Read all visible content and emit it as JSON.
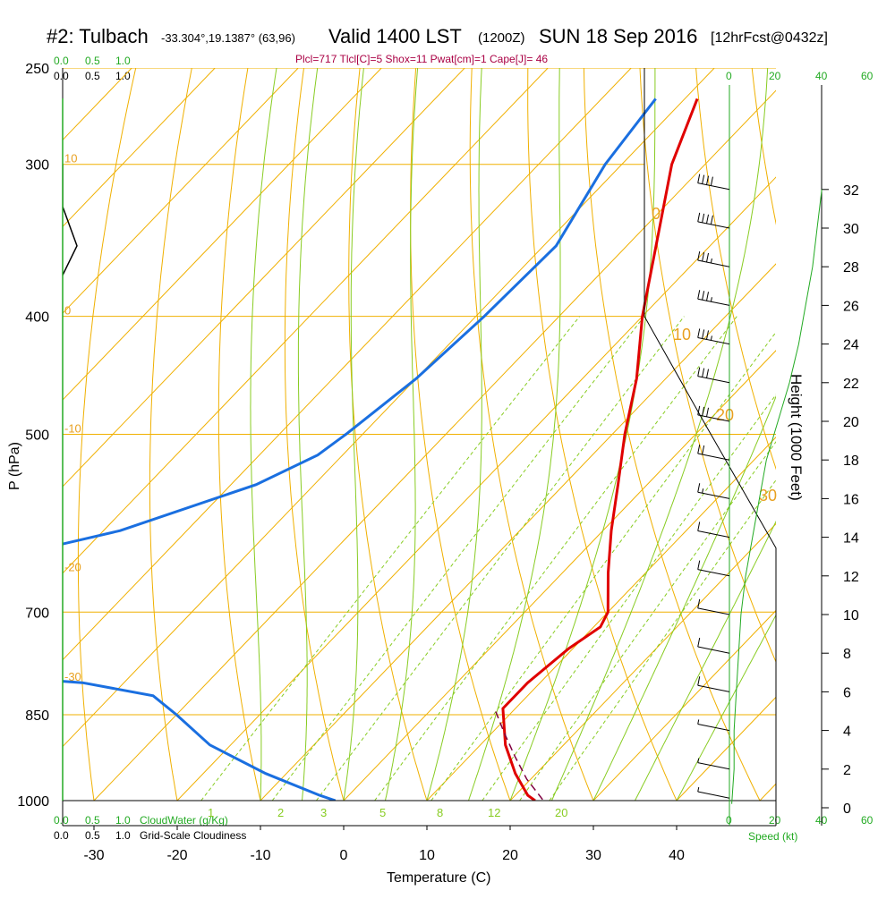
{
  "header": {
    "station": "#2: Tulbach",
    "coords": "-33.304°,19.1387° (63,96)",
    "valid": "Valid 1400 LST",
    "zulu": "(1200Z)",
    "date": "SUN 18 Sep 2016",
    "forecast": "[12hrFcst@0432z]",
    "indices": "Plcl=717 Tlcl[C]=5 Shox=11 Pwat[cm]=1 Cape[J]= 46"
  },
  "colors": {
    "temperature": "#e00000",
    "dewpoint": "#1a6fe0",
    "isobar": "#f0b000",
    "isotherm": "#f0b000",
    "dry_adiabat": "#f0b000",
    "moist_adiabat": "#88cc22",
    "mixing_ratio": "#88cc22",
    "parcel": "#800040",
    "windspeed": "#22aa22",
    "barb": "#000000",
    "cloudwater": "#22aa22",
    "cloudiness": "#000000"
  },
  "top_scales": {
    "cloudwater_ticks": [
      "0.0",
      "0.5",
      "1.0"
    ],
    "cloudiness_ticks": [
      "0.0",
      "0.5",
      "1.0"
    ]
  },
  "bottom_scales": {
    "cloudwater_ticks": [
      "0.0",
      "0.5",
      "1.0"
    ],
    "cloudwater_label": "CloudWater (g/Kg)",
    "cloudiness_ticks": [
      "0.0",
      "0.5",
      "1.0"
    ],
    "cloudiness_label": "Grid-Scale Cloudiness"
  },
  "speed_scale": {
    "top_ticks": [
      "0",
      "20",
      "40",
      "60"
    ],
    "bottom_ticks": [
      "0",
      "20",
      "40",
      "60"
    ],
    "label": "Speed (kt)"
  },
  "chart_data": {
    "type": "line",
    "title": "",
    "xlabel": "Temperature (C)",
    "ylabel": "P (hPa)",
    "y2label": "Height (1000 Feet)",
    "x_ticks": [
      "-30",
      "-20",
      "-10",
      "0",
      "10",
      "20",
      "30",
      "40"
    ],
    "xlim": [
      -33.5,
      46
    ],
    "p_ticks": [
      250,
      300,
      400,
      500,
      700,
      850,
      1000
    ],
    "plim": [
      250,
      1000
    ],
    "log_p": true,
    "skew": "skew-T",
    "height_ticks": [
      0,
      2,
      4,
      6,
      8,
      10,
      12,
      14,
      16,
      18,
      20,
      22,
      24,
      26,
      28,
      30,
      32
    ],
    "isotherm_labels": [
      "10",
      "0",
      "-10",
      "-20",
      "-30"
    ],
    "dry_adiabat_labels": [
      "0",
      "10",
      "20",
      "30"
    ],
    "mixing_ratio_labels": [
      "1",
      "2",
      "3",
      "5",
      "8",
      "12",
      "20"
    ],
    "series": [
      {
        "name": "",
        "p": [
          265,
          300,
          350,
          400,
          450,
          500,
          550,
          600,
          650,
          700,
          720,
          750,
          800,
          840,
          900,
          950,
          990,
          1000
        ],
        "t": [
          -38.5,
          -34,
          -26.5,
          -20,
          -13.5,
          -8.5,
          -3.5,
          1,
          5.5,
          10,
          10.8,
          9.5,
          8.5,
          8.5,
          13,
          17.5,
          21.5,
          23
        ]
      },
      {
        "name": "",
        "p": [
          265,
          300,
          350,
          400,
          450,
          500,
          520,
          550,
          600,
          650,
          700,
          720,
          750,
          780,
          800,
          820,
          850,
          900,
          950,
          990,
          1000
        ],
        "t": [
          -43.5,
          -42,
          -38.5,
          -39,
          -40,
          -42,
          -43,
          -47,
          -58,
          -75,
          -105,
          -110,
          -100,
          -70,
          -45,
          -35,
          -30,
          -22.5,
          -12.5,
          -3.5,
          -1
        ]
      },
      {
        "name": "",
        "p": [
          845,
          880,
          920,
          960,
          1000
        ],
        "t": [
          8,
          11.5,
          15.5,
          19.5,
          24
        ]
      },
      {
        "name": "",
        "z_kft": [
          0.2,
          2,
          4,
          6,
          8,
          10,
          12,
          14,
          16,
          18,
          20,
          22,
          24,
          26,
          28,
          30,
          32
        ],
        "speed_kt": [
          1,
          2,
          2,
          3,
          4,
          5,
          7,
          10,
          13,
          16,
          21,
          26,
          30,
          33,
          36,
          38,
          40
        ]
      }
    ],
    "surface_points": {
      "t": 24,
      "td": 3.5
    },
    "wind_barbs": {
      "z_kft": [
        32,
        30,
        28,
        26,
        24,
        22,
        20,
        18,
        16,
        14,
        12,
        10,
        8,
        6,
        4,
        2,
        0.5
      ],
      "speed_kt": [
        40,
        40,
        35,
        35,
        35,
        30,
        30,
        20,
        15,
        10,
        10,
        10,
        10,
        10,
        5,
        5,
        5
      ]
    },
    "cloudiness": {
      "p": [
        325,
        350,
        370
      ],
      "value": [
        0,
        0.25,
        0
      ]
    }
  }
}
